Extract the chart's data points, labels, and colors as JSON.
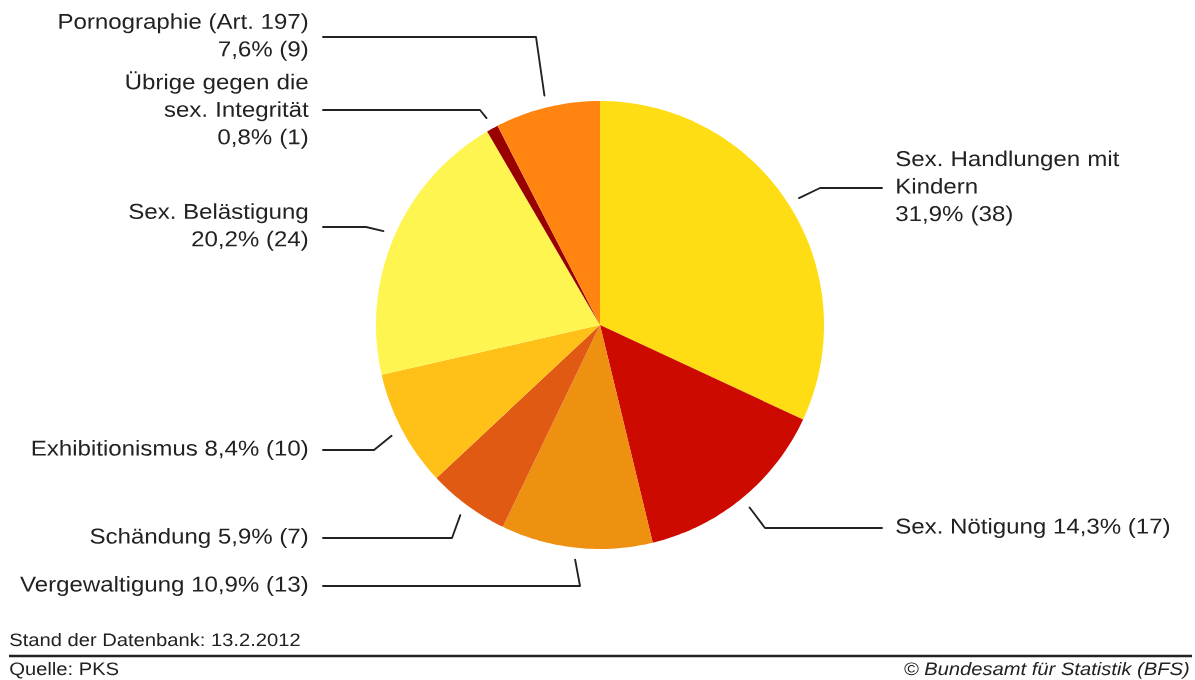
{
  "chart_data": {
    "type": "pie",
    "categories": [
      "Sex. Handlungen mit Kindern",
      "Sex. Nötigung",
      "Vergewaltigung",
      "Schändung",
      "Exhibitionismus",
      "Sex. Belästigung",
      "Übrige gegen die sex. Integrität",
      "Pornographie (Art. 197)"
    ],
    "values": [
      38,
      17,
      13,
      7,
      10,
      24,
      1,
      9
    ],
    "value_labels": [
      "31,9% (38)",
      "14,3% (17)",
      "10,9% (13)",
      "5,9% (7)",
      "8,4% (10)",
      "20,2% (24)",
      "0,8% (1)",
      "7,6% (9)"
    ],
    "colors": [
      "#ffdd14",
      "#cc0a00",
      "#ee9010",
      "#e05a14",
      "#ffc117",
      "#fff550",
      "#990000",
      "#ff8410"
    ],
    "annotations": [
      "Stand der Datenbank: 13.2.2012",
      "Quelle: PKS",
      "© Bundesamt für Statistik (BFS)"
    ]
  }
}
